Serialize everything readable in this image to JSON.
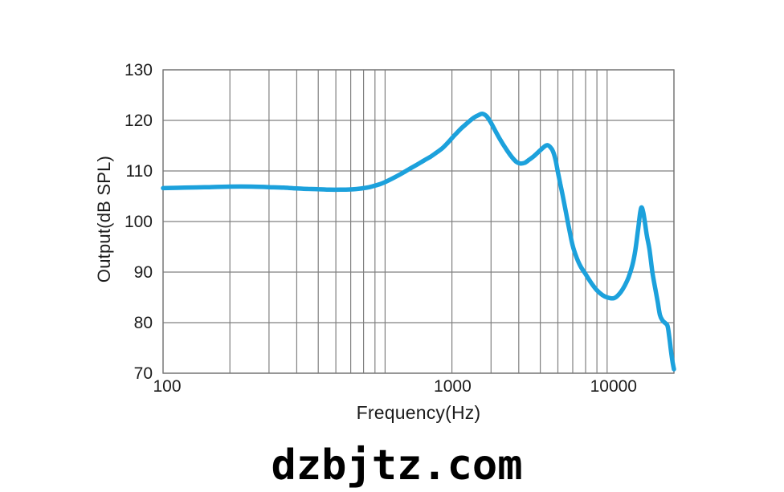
{
  "page": {
    "background": "#ffffff"
  },
  "watermark": {
    "text": "dzbjtz.com"
  },
  "colors": {
    "curve": "#1CA1DC",
    "grid": "#808080",
    "border": "#787878",
    "tick_text": "#1c1c1c",
    "axis_title_text": "#1c1c1c",
    "watermark_text": "#000000"
  },
  "chart_data": {
    "type": "line",
    "title": "",
    "xlabel": "Frequency(Hz)",
    "ylabel": "Output(dB SPL)",
    "x_scale": "log",
    "xlim": [
      100,
      20000
    ],
    "ylim": [
      70,
      130
    ],
    "grid": "on",
    "legend": "none",
    "x_ticks": [
      {
        "value": 100,
        "label": "100"
      },
      {
        "value": 1000,
        "label": "1000"
      },
      {
        "value": 10000,
        "label": "10000"
      }
    ],
    "x_minor_gridlines": [
      200,
      300,
      400,
      500,
      600,
      700,
      800,
      900,
      2000,
      3000,
      4000,
      5000,
      6000,
      7000,
      8000,
      9000,
      20000
    ],
    "y_ticks": [
      {
        "value": 130,
        "label": "130"
      },
      {
        "value": 120,
        "label": "120"
      },
      {
        "value": 110,
        "label": "110"
      },
      {
        "value": 100,
        "label": "100"
      },
      {
        "value": 90,
        "label": "90"
      },
      {
        "value": 80,
        "label": "80"
      },
      {
        "value": 70,
        "label": "70"
      }
    ],
    "key_features": {
      "passband_level_db": 106.6,
      "main_peak": {
        "hz": 2750,
        "db": 121.3
      },
      "dip_after_main_peak": {
        "hz": 4050,
        "db": 111.5
      },
      "second_peak": {
        "hz": 5400,
        "db": 115.1
      },
      "minimum": {
        "hz": 10600,
        "db": 84.8
      },
      "third_peak": {
        "hz": 14300,
        "db": 102.8
      },
      "end_level_db": 70.8
    },
    "series": [
      {
        "name": "SPL response",
        "color": "#1CA1DC",
        "points": [
          [
            100,
            106.6
          ],
          [
            125,
            106.7
          ],
          [
            160,
            106.8
          ],
          [
            200,
            106.9
          ],
          [
            250,
            106.9
          ],
          [
            300,
            106.8
          ],
          [
            350,
            106.7
          ],
          [
            400,
            106.55
          ],
          [
            450,
            106.45
          ],
          [
            500,
            106.4
          ],
          [
            560,
            106.3
          ],
          [
            630,
            106.3
          ],
          [
            700,
            106.35
          ],
          [
            750,
            106.45
          ],
          [
            800,
            106.6
          ],
          [
            850,
            106.8
          ],
          [
            900,
            107.1
          ],
          [
            950,
            107.4
          ],
          [
            1000,
            107.8
          ],
          [
            1100,
            108.7
          ],
          [
            1200,
            109.6
          ],
          [
            1300,
            110.5
          ],
          [
            1400,
            111.3
          ],
          [
            1500,
            112.1
          ],
          [
            1600,
            112.8
          ],
          [
            1700,
            113.6
          ],
          [
            1800,
            114.4
          ],
          [
            1900,
            115.4
          ],
          [
            2000,
            116.5
          ],
          [
            2100,
            117.5
          ],
          [
            2200,
            118.4
          ],
          [
            2350,
            119.5
          ],
          [
            2500,
            120.5
          ],
          [
            2650,
            121.1
          ],
          [
            2750,
            121.3
          ],
          [
            2870,
            120.8
          ],
          [
            3000,
            119.5
          ],
          [
            3150,
            117.8
          ],
          [
            3300,
            116.2
          ],
          [
            3500,
            114.4
          ],
          [
            3700,
            112.9
          ],
          [
            3900,
            111.8
          ],
          [
            4050,
            111.5
          ],
          [
            4250,
            111.6
          ],
          [
            4450,
            112.2
          ],
          [
            4700,
            113.0
          ],
          [
            5000,
            114.1
          ],
          [
            5250,
            114.9
          ],
          [
            5400,
            115.1
          ],
          [
            5550,
            114.7
          ],
          [
            5700,
            113.9
          ],
          [
            5850,
            112.3
          ],
          [
            6000,
            109.8
          ],
          [
            6150,
            107.5
          ],
          [
            6300,
            105.3
          ],
          [
            6500,
            102.2
          ],
          [
            6750,
            98.5
          ],
          [
            7000,
            95.2
          ],
          [
            7300,
            92.8
          ],
          [
            7600,
            91.1
          ],
          [
            8000,
            89.6
          ],
          [
            8500,
            87.8
          ],
          [
            9000,
            86.4
          ],
          [
            9500,
            85.5
          ],
          [
            10000,
            85.0
          ],
          [
            10600,
            84.8
          ],
          [
            11000,
            85.1
          ],
          [
            11500,
            86.0
          ],
          [
            12000,
            87.3
          ],
          [
            12500,
            89.0
          ],
          [
            13000,
            91.4
          ],
          [
            13400,
            94.3
          ],
          [
            13800,
            98.6
          ],
          [
            14100,
            101.8
          ],
          [
            14300,
            102.8
          ],
          [
            14550,
            101.8
          ],
          [
            14800,
            99.8
          ],
          [
            15100,
            97.2
          ],
          [
            15500,
            94.6
          ],
          [
            16000,
            89.9
          ],
          [
            16500,
            86.6
          ],
          [
            16900,
            84.1
          ],
          [
            17300,
            81.5
          ],
          [
            17800,
            80.4
          ],
          [
            18300,
            79.9
          ],
          [
            18700,
            79.4
          ],
          [
            19000,
            77.6
          ],
          [
            19350,
            74.8
          ],
          [
            19650,
            72.6
          ],
          [
            20000,
            70.8
          ]
        ]
      }
    ]
  }
}
